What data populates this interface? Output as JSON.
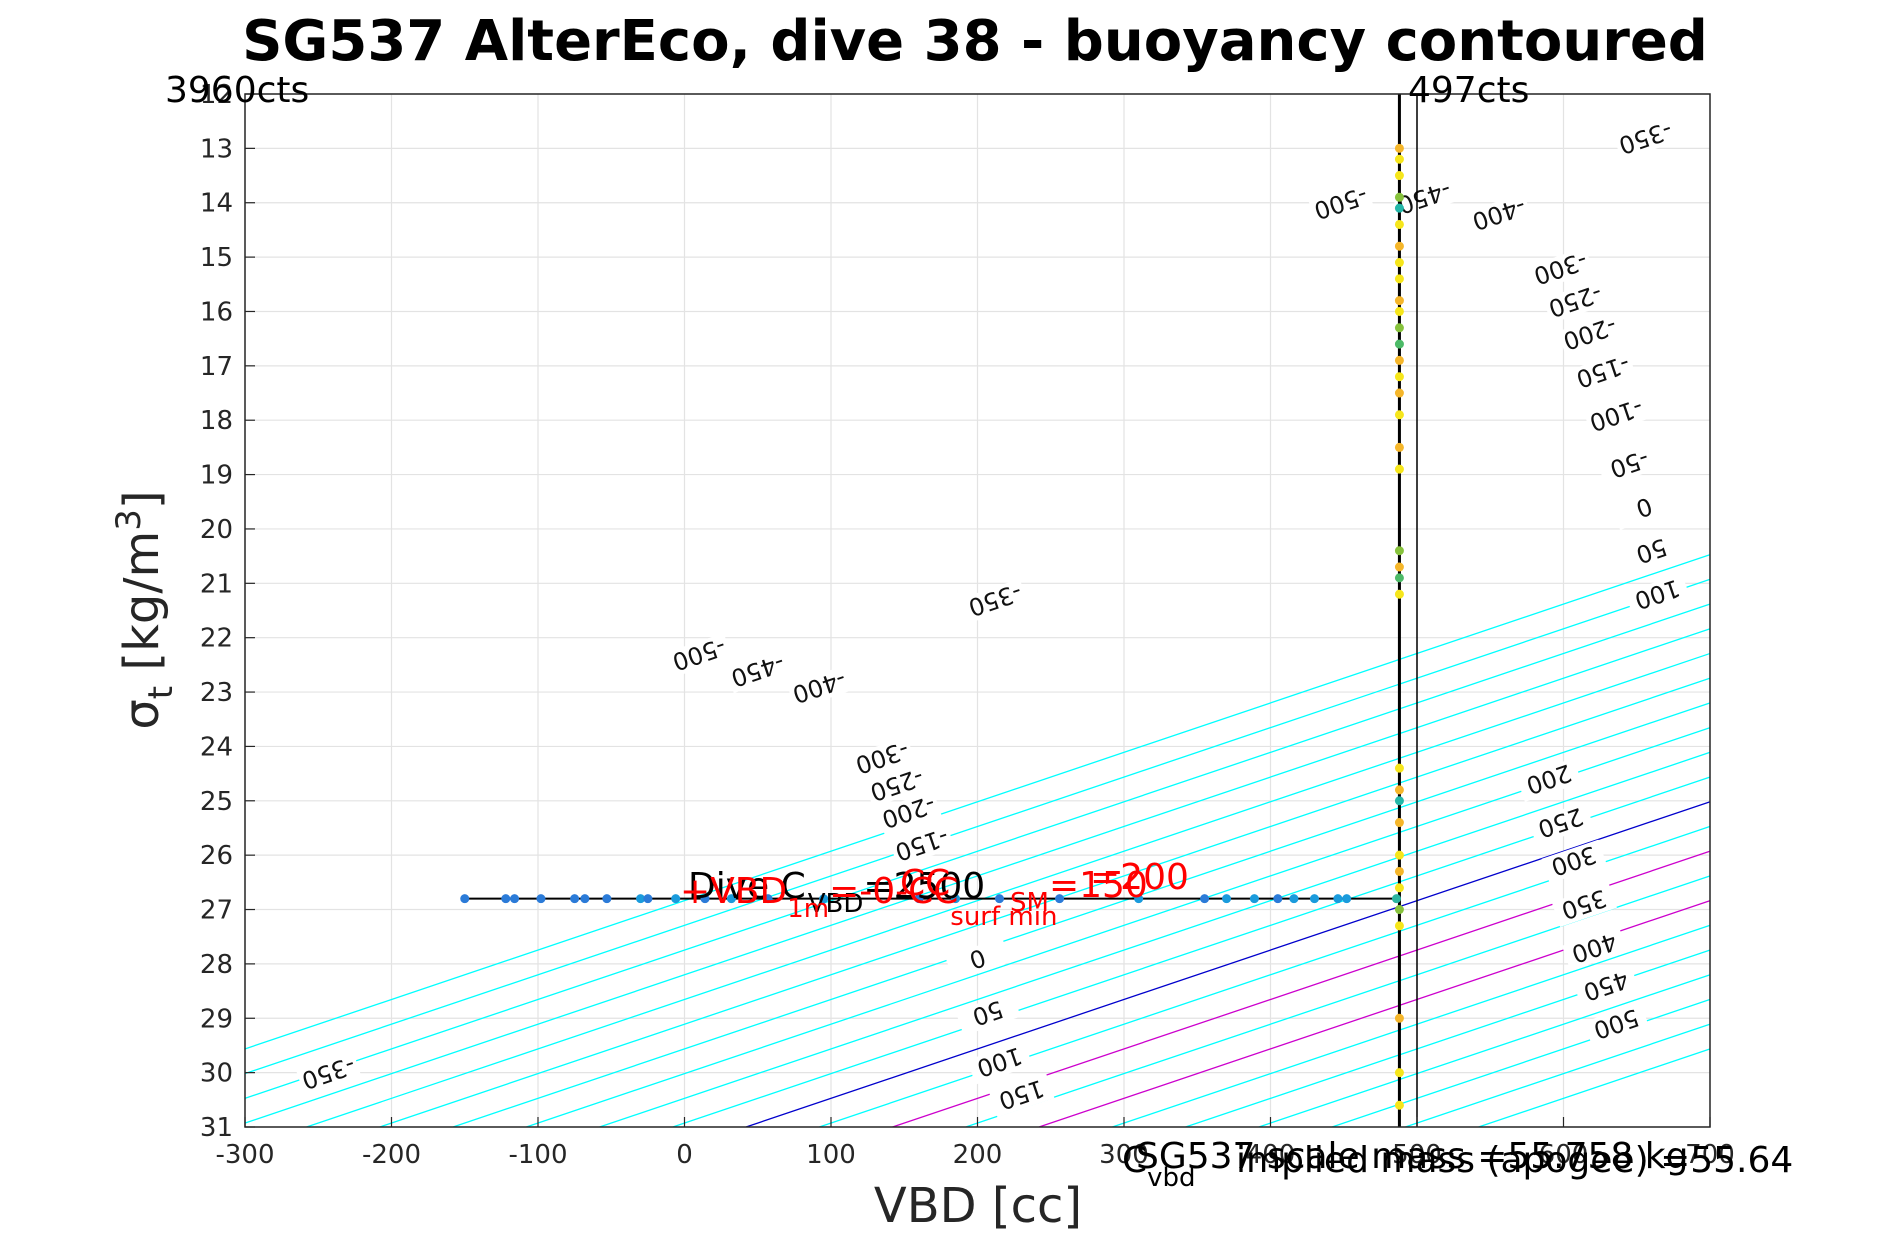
{
  "chart_data": {
    "type": "scatter",
    "title": "SG537 AlterEco, dive 38 - buoyancy contoured",
    "xlabel": "VBD [cc]",
    "ylabel": "σ",
    "ylabel_sub": "t",
    "ylabel_unit": " [kg/m",
    "ylabel_sup": "3",
    "ylabel_close": "]",
    "xlim": [
      -300,
      700
    ],
    "ylim": [
      12,
      31
    ],
    "y_reversed": true,
    "grid": true,
    "x_ticks": [
      "-300",
      "-200",
      "-100",
      "0",
      "100",
      "200",
      "300",
      "400",
      "500",
      "600",
      "700"
    ],
    "y_ticks": [
      "12",
      "13",
      "14",
      "15",
      "16",
      "17",
      "18",
      "19",
      "20",
      "21",
      "22",
      "23",
      "24",
      "25",
      "26",
      "27",
      "28",
      "29",
      "30",
      "31"
    ],
    "counts_left": "3960cts",
    "counts_right": "497cts",
    "contours": {
      "slope_per_density": -110,
      "levels": [
        -500,
        -450,
        -400,
        -350,
        -300,
        -250,
        -200,
        -150,
        -100,
        -50,
        0,
        50,
        100,
        150,
        200,
        250,
        300,
        350,
        400,
        450,
        500
      ],
      "zero_anchor": {
        "x": 42,
        "y": 31
      },
      "labels": [
        {
          "level": "-500",
          "x": 10,
          "y": 22.3
        },
        {
          "level": "-450",
          "x": 50,
          "y": 22.6
        },
        {
          "level": "-400",
          "x": 92,
          "y": 22.9
        },
        {
          "level": "-350",
          "x": 212,
          "y": 21.3
        },
        {
          "level": "-300",
          "x": 135,
          "y": 24.2
        },
        {
          "level": "-250",
          "x": 145,
          "y": 24.7
        },
        {
          "level": "-200",
          "x": 153,
          "y": 25.2
        },
        {
          "level": "-150",
          "x": 162,
          "y": 25.8
        },
        {
          "level": "-350",
          "x": -243,
          "y": 30.0
        },
        {
          "level": "0",
          "x": 200,
          "y": 27.9
        },
        {
          "level": "50",
          "x": 207,
          "y": 28.9
        },
        {
          "level": "100",
          "x": 215,
          "y": 29.8
        },
        {
          "level": "150",
          "x": 230,
          "y": 30.4
        },
        {
          "level": "-500",
          "x": 448,
          "y": 14.0
        },
        {
          "level": "-450",
          "x": 505,
          "y": 13.9
        },
        {
          "level": "-400",
          "x": 556,
          "y": 14.2
        },
        {
          "level": "-350",
          "x": 656,
          "y": 12.8
        },
        {
          "level": "-300",
          "x": 598,
          "y": 15.2
        },
        {
          "level": "-250",
          "x": 608,
          "y": 15.8
        },
        {
          "level": "-200",
          "x": 618,
          "y": 16.4
        },
        {
          "level": "-150",
          "x": 627,
          "y": 17.1
        },
        {
          "level": "-100",
          "x": 636,
          "y": 17.9
        },
        {
          "level": "-50",
          "x": 645,
          "y": 18.8
        },
        {
          "level": "0",
          "x": 655,
          "y": 19.6
        },
        {
          "level": "50",
          "x": 660,
          "y": 20.4
        },
        {
          "level": "100",
          "x": 664,
          "y": 21.2
        },
        {
          "level": "200",
          "x": 590,
          "y": 24.6
        },
        {
          "level": "250",
          "x": 598,
          "y": 25.4
        },
        {
          "level": "300",
          "x": 607,
          "y": 26.1
        },
        {
          "level": "350",
          "x": 614,
          "y": 26.9
        },
        {
          "level": "400",
          "x": 621,
          "y": 27.7
        },
        {
          "level": "450",
          "x": 629,
          "y": 28.4
        },
        {
          "level": "500",
          "x": 636,
          "y": 29.1
        }
      ]
    },
    "path": {
      "horizontal": {
        "x_from": -150,
        "x_to": 488,
        "y": 26.8
      },
      "vertical": {
        "x": 488,
        "y_from": 12,
        "y_to": 31
      },
      "vline_right": {
        "x": 500
      }
    },
    "points_horizontal": [
      {
        "x": -150,
        "y": 26.8,
        "c": "#2b7bd8"
      },
      {
        "x": -122,
        "y": 26.8,
        "c": "#2b7bd8"
      },
      {
        "x": -116,
        "y": 26.8,
        "c": "#2b7bd8"
      },
      {
        "x": -98,
        "y": 26.8,
        "c": "#2b7bd8"
      },
      {
        "x": -75,
        "y": 26.8,
        "c": "#2b7bd8"
      },
      {
        "x": -68,
        "y": 26.8,
        "c": "#2b7bd8"
      },
      {
        "x": -53,
        "y": 26.8,
        "c": "#2b7bd8"
      },
      {
        "x": -30,
        "y": 26.8,
        "c": "#1a9bdc"
      },
      {
        "x": -25,
        "y": 26.8,
        "c": "#2b7bd8"
      },
      {
        "x": -6,
        "y": 26.8,
        "c": "#1a9bdc"
      },
      {
        "x": 14,
        "y": 26.8,
        "c": "#2b7bd8"
      },
      {
        "x": 32,
        "y": 26.8,
        "c": "#1a9bdc"
      },
      {
        "x": 57,
        "y": 26.8,
        "c": "#2b7bd8"
      },
      {
        "x": 95,
        "y": 26.8,
        "c": "#1a9bdc"
      },
      {
        "x": 160,
        "y": 26.8,
        "c": "#2b7bd8"
      },
      {
        "x": 185,
        "y": 26.8,
        "c": "#1a9bdc"
      },
      {
        "x": 215,
        "y": 26.8,
        "c": "#2b7bd8"
      },
      {
        "x": 256,
        "y": 26.8,
        "c": "#2b7bd8"
      },
      {
        "x": 310,
        "y": 26.8,
        "c": "#1a9bdc"
      },
      {
        "x": 355,
        "y": 26.8,
        "c": "#2b7bd8"
      },
      {
        "x": 370,
        "y": 26.8,
        "c": "#1a9bdc"
      },
      {
        "x": 389,
        "y": 26.8,
        "c": "#1a9bdc"
      },
      {
        "x": 405,
        "y": 26.8,
        "c": "#2b7bd8"
      },
      {
        "x": 416,
        "y": 26.8,
        "c": "#1a9bdc"
      },
      {
        "x": 430,
        "y": 26.8,
        "c": "#1a9bdc"
      },
      {
        "x": 446,
        "y": 26.8,
        "c": "#1a9bdc"
      },
      {
        "x": 452,
        "y": 26.8,
        "c": "#1a9bdc"
      },
      {
        "x": 486,
        "y": 26.8,
        "c": "#2bb5a0"
      }
    ],
    "points_vertical": [
      {
        "x": 488,
        "y": 13.0,
        "c": "#f5b62a"
      },
      {
        "x": 488,
        "y": 13.2,
        "c": "#f6e61b"
      },
      {
        "x": 488,
        "y": 13.5,
        "c": "#f6e61b"
      },
      {
        "x": 488,
        "y": 13.9,
        "c": "#86c23c"
      },
      {
        "x": 488,
        "y": 14.1,
        "c": "#23b7a8"
      },
      {
        "x": 488,
        "y": 14.4,
        "c": "#f6e61b"
      },
      {
        "x": 488,
        "y": 14.8,
        "c": "#f5b62a"
      },
      {
        "x": 488,
        "y": 15.1,
        "c": "#f6e61b"
      },
      {
        "x": 488,
        "y": 15.4,
        "c": "#f6e61b"
      },
      {
        "x": 488,
        "y": 15.8,
        "c": "#f5b62a"
      },
      {
        "x": 488,
        "y": 16.0,
        "c": "#f6e61b"
      },
      {
        "x": 488,
        "y": 16.3,
        "c": "#86c23c"
      },
      {
        "x": 488,
        "y": 16.6,
        "c": "#4cba67"
      },
      {
        "x": 488,
        "y": 16.9,
        "c": "#f5b62a"
      },
      {
        "x": 488,
        "y": 17.2,
        "c": "#f6e61b"
      },
      {
        "x": 488,
        "y": 17.5,
        "c": "#f5b62a"
      },
      {
        "x": 488,
        "y": 17.9,
        "c": "#f6e61b"
      },
      {
        "x": 488,
        "y": 18.5,
        "c": "#f5b62a"
      },
      {
        "x": 488,
        "y": 18.9,
        "c": "#f6e61b"
      },
      {
        "x": 488,
        "y": 20.4,
        "c": "#86c23c"
      },
      {
        "x": 488,
        "y": 20.7,
        "c": "#f5b62a"
      },
      {
        "x": 488,
        "y": 20.9,
        "c": "#4cba67"
      },
      {
        "x": 488,
        "y": 21.2,
        "c": "#f6e61b"
      },
      {
        "x": 488,
        "y": 24.4,
        "c": "#f6e61b"
      },
      {
        "x": 488,
        "y": 24.8,
        "c": "#f5b62a"
      },
      {
        "x": 488,
        "y": 25.0,
        "c": "#23b7a8"
      },
      {
        "x": 488,
        "y": 25.4,
        "c": "#f5b62a"
      },
      {
        "x": 488,
        "y": 26.0,
        "c": "#f6e61b"
      },
      {
        "x": 488,
        "y": 26.3,
        "c": "#f5b62a"
      },
      {
        "x": 488,
        "y": 26.6,
        "c": "#f6e61b"
      },
      {
        "x": 488,
        "y": 27.0,
        "c": "#86c23c"
      },
      {
        "x": 488,
        "y": 27.3,
        "c": "#f6e61b"
      },
      {
        "x": 488,
        "y": 29.0,
        "c": "#f5b62a"
      },
      {
        "x": 488,
        "y": 30.0,
        "c": "#f6e61b"
      },
      {
        "x": 488,
        "y": 30.6,
        "c": "#f6e61b"
      }
    ],
    "colors": {
      "contour": "#00ffff",
      "zero_contour": "#0000cc",
      "magenta_contour": "#cc00cc",
      "annotation_red": "#ff0000",
      "grid": "#e3e3e3"
    },
    "annotations": {
      "dive_c_vbd": "Dive C",
      "dive_c_vbd_sub": "VBD",
      "dive_c_vbd_value": "=2500",
      "vbd_1m": "+VBD",
      "vbd_1m_sub": "1m",
      "vbd_1m_value": "=-0-CC",
      "cc_surf": "CC",
      "cc_surf_sub": "surf min",
      "sm": "=200",
      "sm_label": "SM",
      "sm_value": "=150",
      "scale_mass": "SG537 scale mass =55.758 kg",
      "implied_mass": "implied mass (apogee) =55.64",
      "c_vbd": "C",
      "c_vbd_sub": "vbd"
    }
  }
}
